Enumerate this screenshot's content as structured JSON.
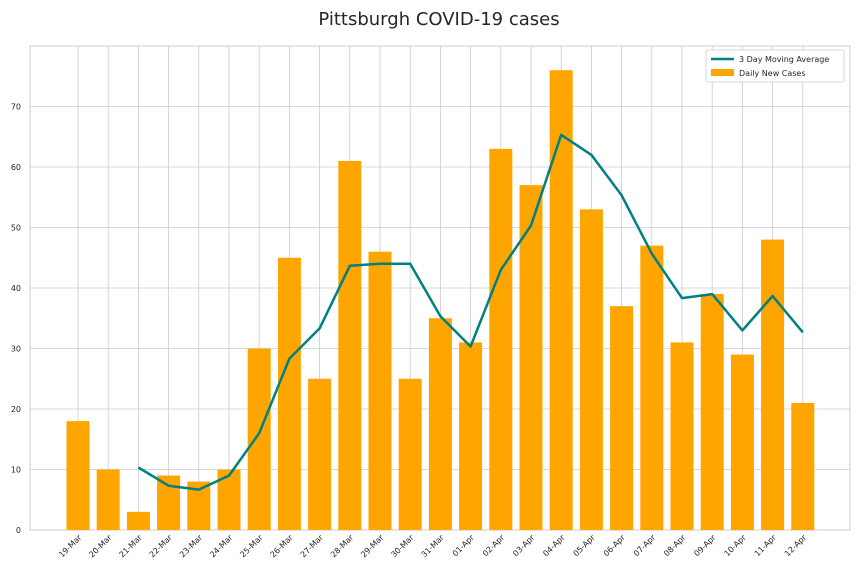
{
  "chart_data": {
    "type": "bar",
    "title": "Pittsburgh COVID-19 cases",
    "xlabel": "",
    "ylabel": "",
    "ylim": [
      0,
      80
    ],
    "yticks": [
      0,
      10,
      20,
      30,
      40,
      50,
      60,
      70
    ],
    "grid": true,
    "legend_position": "top-right",
    "categories": [
      "19-Mar",
      "20-Mar",
      "21-Mar",
      "22-Mar",
      "23-Mar",
      "24-Mar",
      "25-Mar",
      "26-Mar",
      "27-Mar",
      "28-Mar",
      "29-Mar",
      "30-Mar",
      "31-Mar",
      "01-Apr",
      "02-Apr",
      "03-Apr",
      "04-Apr",
      "05-Apr",
      "06-Apr",
      "07-Apr",
      "08-Apr",
      "09-Apr",
      "10-Apr",
      "11-Apr",
      "12-Apr"
    ],
    "series": [
      {
        "name": "Daily New Cases",
        "kind": "bar",
        "color": "#ffa500",
        "values": [
          18,
          10,
          3,
          9,
          8,
          10,
          30,
          45,
          25,
          61,
          46,
          25,
          35,
          31,
          63,
          57,
          76,
          53,
          37,
          47,
          31,
          39,
          29,
          48,
          21
        ]
      },
      {
        "name": "3 Day Moving Average",
        "kind": "line",
        "color": "#008080",
        "values": [
          null,
          null,
          10.33,
          7.33,
          6.67,
          9.0,
          16.0,
          28.33,
          33.33,
          43.67,
          44.0,
          44.0,
          35.33,
          30.33,
          43.0,
          50.33,
          65.33,
          62.0,
          55.33,
          45.67,
          38.33,
          39.0,
          33.0,
          38.67,
          32.67
        ]
      }
    ]
  }
}
